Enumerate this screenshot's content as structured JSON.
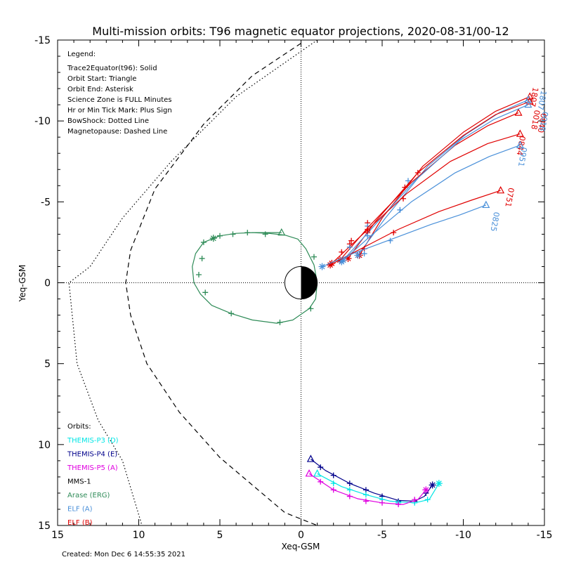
{
  "chart_data": {
    "type": "line",
    "title": "Multi-mission orbits: T96 magnetic equator projections, 2020-08-31/00-12",
    "xlabel": "Xeq-GSM",
    "ylabel": "Yeq-GSM",
    "xlim": [
      15,
      -15
    ],
    "ylim": [
      -15,
      15
    ],
    "grid": false,
    "x_ticks": [
      "15",
      "10",
      "5",
      "0",
      "-5",
      "-10",
      "-15"
    ],
    "y_ticks": [
      "-15",
      "-10",
      "-5",
      "0",
      "5",
      "10",
      "15"
    ],
    "legend_title": "Legend:",
    "legend_lines": [
      "Trace2Equator(t96): Solid",
      "Orbit Start: Triangle",
      "Orbit End: Asterisk",
      "Science Zone is FULL Minutes",
      "Hr or Min Tick Mark: Plus Sign",
      "BowShock: Dotted Line",
      "Magnetopause: Dashed Line"
    ],
    "orbits_title": "Orbits:",
    "orbit_legend": [
      {
        "label": "THEMIS-P3 (D)",
        "color": "#00e5e5"
      },
      {
        "label": "THEMIS-P4 (E)",
        "color": "#00008b"
      },
      {
        "label": "THEMIS-P5 (A)",
        "color": "#e000e0"
      },
      {
        "label": "MMS-1",
        "color": "#000000"
      },
      {
        "label": "Arase (ERG)",
        "color": "#2e8b57"
      },
      {
        "label": "ELF (A)",
        "color": "#4a90d9"
      },
      {
        "label": "ELF (B)",
        "color": "#e00000"
      }
    ],
    "footer": "Created: Mon Dec  6 14:55:35 2021",
    "boundaries": {
      "bowshock": [
        [
          -1,
          -15
        ],
        [
          4,
          -11.5
        ],
        [
          8,
          -7.5
        ],
        [
          11,
          -4
        ],
        [
          13,
          -1
        ],
        [
          14.3,
          0
        ],
        [
          13.8,
          5
        ],
        [
          12.5,
          8.5
        ],
        [
          11,
          11
        ],
        [
          9.8,
          15
        ]
      ],
      "magnetopause": [
        [
          0,
          -14.8
        ],
        [
          3,
          -12.8
        ],
        [
          6,
          -9.8
        ],
        [
          9,
          -5.8
        ],
        [
          10.5,
          -2
        ],
        [
          10.8,
          0
        ],
        [
          10.5,
          2
        ],
        [
          9.5,
          5
        ],
        [
          7.5,
          8
        ],
        [
          5,
          10.8
        ],
        [
          3,
          12.5
        ],
        [
          1,
          14.2
        ],
        [
          -1,
          15
        ]
      ]
    },
    "series": [
      {
        "name": "Arase (ERG)",
        "color": "#2e8b57",
        "points": [
          [
            1.2,
            -3.1
          ],
          [
            2,
            -3.1
          ],
          [
            3,
            -3.1
          ],
          [
            4,
            -3.05
          ],
          [
            5,
            -2.9
          ],
          [
            6,
            -2.5
          ],
          [
            6.5,
            -1.8
          ],
          [
            6.7,
            -1.0
          ],
          [
            6.6,
            0
          ],
          [
            6.2,
            0.7
          ],
          [
            5.5,
            1.4
          ],
          [
            4.3,
            1.9
          ],
          [
            3,
            2.3
          ],
          [
            1.5,
            2.5
          ],
          [
            0.5,
            2.3
          ],
          [
            -0.5,
            1.6
          ],
          [
            -0.9,
            1.0
          ],
          [
            -1.0,
            0
          ],
          [
            -0.8,
            -1.1
          ],
          [
            -0.3,
            -2.1
          ],
          [
            0.2,
            -2.7
          ],
          [
            1.0,
            -2.95
          ],
          [
            2.0,
            -3.05
          ],
          [
            3,
            -3.1
          ]
        ],
        "start": [
          1.2,
          -3.1
        ],
        "end": [
          5.4,
          -2.75
        ],
        "ticks": [
          [
            5.0,
            -2.9
          ],
          [
            6.0,
            -2.5
          ],
          [
            6.1,
            -1.5
          ],
          [
            6.3,
            -0.5
          ],
          [
            5.9,
            0.6
          ],
          [
            4.3,
            1.9
          ],
          [
            1.3,
            2.45
          ],
          [
            -0.6,
            1.6
          ],
          [
            -0.8,
            -1.6
          ],
          [
            2.2,
            -3.0
          ],
          [
            3.3,
            -3.1
          ],
          [
            4.2,
            -3.0
          ]
        ]
      },
      {
        "name": "ELF (B)",
        "color": "#e00000",
        "label": "1807",
        "label_at": [
          -14.3,
          -12.1
        ],
        "start": [
          -14.1,
          -11.5
        ],
        "end": [
          -3.6,
          -1.7
        ],
        "ticks": [
          [
            -4.1,
            -3.7
          ],
          [
            -6.4,
            -5.9
          ],
          [
            -7.2,
            -6.8
          ]
        ],
        "points": [
          [
            -3.6,
            -1.7
          ],
          [
            -5,
            -4.0
          ],
          [
            -7.5,
            -7.2
          ],
          [
            -10,
            -9.3
          ],
          [
            -12,
            -10.6
          ],
          [
            -14.1,
            -11.5
          ]
        ]
      },
      {
        "name": "ELF (A)",
        "color": "#4a90d9",
        "label": "1807",
        "label_at": [
          -14.8,
          -11.9
        ],
        "start": [
          -14.0,
          -11.3
        ],
        "end": [
          -3.5,
          -1.7
        ],
        "ticks": [
          [
            -4.1,
            -3.5
          ],
          [
            -6.6,
            -6.3
          ]
        ],
        "points": [
          [
            -3.5,
            -1.7
          ],
          [
            -5.2,
            -4.0
          ],
          [
            -7.8,
            -7.2
          ],
          [
            -10.2,
            -9.2
          ],
          [
            -12.2,
            -10.5
          ],
          [
            -14.0,
            -11.3
          ]
        ]
      },
      {
        "name": "ELF (B)",
        "color": "#e00000",
        "label": "0040",
        "label_at": [
          -14.8,
          -10.5
        ],
        "start": [
          -13.4,
          -10.5
        ],
        "end": [
          -2.4,
          -1.4
        ],
        "ticks": [
          [
            -3.0,
            -2.4
          ],
          [
            -4.1,
            -3.3
          ],
          [
            -6.3,
            -5.2
          ]
        ],
        "points": [
          [
            -2.4,
            -1.4
          ],
          [
            -4.2,
            -3.5
          ],
          [
            -6.8,
            -6.2
          ],
          [
            -9.5,
            -8.5
          ],
          [
            -11.5,
            -9.7
          ],
          [
            -13.4,
            -10.5
          ]
        ]
      },
      {
        "name": "ELF (B)",
        "color": "#e00000",
        "label": "0018",
        "label_at": [
          -14.4,
          -10.7
        ],
        "start": [
          -14.1,
          -11.2
        ],
        "end": [
          -2.9,
          -1.5
        ],
        "ticks": [
          [
            -3.1,
            -2.6
          ],
          [
            -4.1,
            -3.1
          ]
        ],
        "points": [
          [
            -2.9,
            -1.5
          ],
          [
            -4.6,
            -3.8
          ],
          [
            -7.2,
            -6.8
          ],
          [
            -10,
            -9.1
          ],
          [
            -12,
            -10.4
          ],
          [
            -14.1,
            -11.2
          ]
        ]
      },
      {
        "name": "ELF (A)",
        "color": "#4a90d9",
        "label": "0018",
        "label_at": [
          -14.9,
          -10.6
        ],
        "start": [
          -14.0,
          -11.0
        ],
        "end": [
          -2.6,
          -1.4
        ],
        "ticks": [
          [
            -4.1,
            -2.9
          ],
          [
            -6.1,
            -4.5
          ]
        ],
        "points": [
          [
            -2.6,
            -1.4
          ],
          [
            -4.4,
            -3.4
          ],
          [
            -7,
            -6.3
          ],
          [
            -9.8,
            -8.8
          ],
          [
            -11.9,
            -10.1
          ],
          [
            -14.0,
            -11.0
          ]
        ]
      },
      {
        "name": "ELF (B)",
        "color": "#e00000",
        "label": "0844",
        "label_at": [
          -13.5,
          -9.1
        ],
        "start": [
          -13.5,
          -9.2
        ],
        "end": [
          -1.9,
          -1.2
        ],
        "ticks": [
          [
            -2.5,
            -1.9
          ],
          [
            -4.1,
            -3.2
          ]
        ],
        "points": [
          [
            -1.9,
            -1.2
          ],
          [
            -3.8,
            -3.0
          ],
          [
            -6.5,
            -5.5
          ],
          [
            -9.2,
            -7.5
          ],
          [
            -11.5,
            -8.6
          ],
          [
            -13.5,
            -9.2
          ]
        ]
      },
      {
        "name": "ELF (A)",
        "color": "#4a90d9",
        "label": "0951",
        "label_at": [
          -13.6,
          -8.4
        ],
        "start": [
          -13.5,
          -8.5
        ],
        "end": [
          -2.5,
          -1.3
        ],
        "ticks": [
          [
            -3.0,
            -2.2
          ],
          [
            -6.1,
            -4.5
          ]
        ],
        "points": [
          [
            -2.5,
            -1.3
          ],
          [
            -4.3,
            -2.9
          ],
          [
            -6.8,
            -5.0
          ],
          [
            -9.5,
            -6.8
          ],
          [
            -11.6,
            -7.8
          ],
          [
            -13.5,
            -8.5
          ]
        ]
      },
      {
        "name": "ELF (B)",
        "color": "#e00000",
        "label": "0751",
        "label_at": [
          -12.8,
          -5.9
        ],
        "start": [
          -12.3,
          -5.7
        ],
        "end": [
          -1.8,
          -1.1
        ],
        "ticks": [
          [
            -3.9,
            -2.1
          ],
          [
            -5.7,
            -3.1
          ]
        ],
        "points": [
          [
            -1.8,
            -1.1
          ],
          [
            -3.5,
            -2.0
          ],
          [
            -6,
            -3.3
          ],
          [
            -8.5,
            -4.4
          ],
          [
            -10.5,
            -5.1
          ],
          [
            -12.3,
            -5.7
          ]
        ]
      },
      {
        "name": "ELF (A)",
        "color": "#4a90d9",
        "label": "0825",
        "label_at": [
          -11.9,
          -4.4
        ],
        "start": [
          -11.4,
          -4.8
        ],
        "end": [
          -1.3,
          -1.0
        ],
        "ticks": [
          [
            -3.9,
            -1.8
          ],
          [
            -5.5,
            -2.6
          ]
        ],
        "points": [
          [
            -1.3,
            -1.0
          ],
          [
            -3.2,
            -1.8
          ],
          [
            -5.6,
            -2.7
          ],
          [
            -8,
            -3.6
          ],
          [
            -9.8,
            -4.2
          ],
          [
            -11.4,
            -4.8
          ]
        ]
      },
      {
        "name": "THEMIS-P4 (E)",
        "color": "#00008b",
        "start": [
          -0.6,
          10.9
        ],
        "end": [
          -8.1,
          12.5
        ],
        "ticks": [
          [
            -1.2,
            11.4
          ],
          [
            -2,
            11.9
          ],
          [
            -3,
            12.4
          ],
          [
            -4,
            12.8
          ],
          [
            -5,
            13.2
          ],
          [
            -6,
            13.5
          ],
          [
            -7,
            13.5
          ],
          [
            -7.7,
            13.0
          ]
        ],
        "points": [
          [
            -0.6,
            10.9
          ],
          [
            -1.5,
            11.6
          ],
          [
            -3,
            12.4
          ],
          [
            -4.5,
            13.0
          ],
          [
            -6,
            13.45
          ],
          [
            -7.0,
            13.5
          ],
          [
            -7.6,
            13.2
          ],
          [
            -8.1,
            12.5
          ]
        ]
      },
      {
        "name": "THEMIS-P3 (D)",
        "color": "#00e5e5",
        "start": [
          -1.0,
          11.8
        ],
        "end": [
          -8.5,
          12.4
        ],
        "ticks": [
          [
            -2,
            12.4
          ],
          [
            -3,
            12.8
          ],
          [
            -4,
            13.1
          ],
          [
            -5,
            13.4
          ],
          [
            -6,
            13.6
          ],
          [
            -7,
            13.6
          ],
          [
            -7.8,
            13.4
          ]
        ],
        "points": [
          [
            -1.0,
            11.8
          ],
          [
            -2.5,
            12.6
          ],
          [
            -4,
            13.1
          ],
          [
            -5.5,
            13.5
          ],
          [
            -7,
            13.6
          ],
          [
            -7.9,
            13.4
          ],
          [
            -8.5,
            12.4
          ]
        ]
      },
      {
        "name": "THEMIS-P5 (A)",
        "color": "#e000e0",
        "start": [
          -0.5,
          11.8
        ],
        "end": [
          -7.7,
          12.8
        ],
        "ticks": [
          [
            -1.2,
            12.3
          ],
          [
            -2,
            12.8
          ],
          [
            -3,
            13.2
          ],
          [
            -4,
            13.5
          ],
          [
            -5,
            13.6
          ],
          [
            -6,
            13.7
          ],
          [
            -7,
            13.4
          ]
        ],
        "points": [
          [
            -0.5,
            11.8
          ],
          [
            -2,
            12.8
          ],
          [
            -3.5,
            13.35
          ],
          [
            -5,
            13.6
          ],
          [
            -6.3,
            13.7
          ],
          [
            -7.2,
            13.4
          ],
          [
            -7.7,
            12.8
          ]
        ]
      }
    ]
  }
}
